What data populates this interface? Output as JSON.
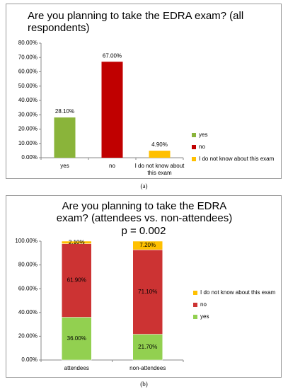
{
  "chart_data": [
    {
      "type": "bar",
      "title": "Are you planning to take the EDRA exam? (all respondents)",
      "caption": "(a)",
      "categories": [
        "yes",
        "no",
        "I do not know about this exam"
      ],
      "values": [
        28.1,
        67.0,
        4.9
      ],
      "value_labels": [
        "28.10%",
        "67.00%",
        "4.90%"
      ],
      "colors": [
        "#8ab43a",
        "#c00000",
        "#ffc000"
      ],
      "ylim": [
        0,
        80
      ],
      "yticks": [
        {
          "value": 0,
          "label": "0.00%"
        },
        {
          "value": 10,
          "label": "10.00%"
        },
        {
          "value": 20,
          "label": "20.00%"
        },
        {
          "value": 30,
          "label": "30.00%"
        },
        {
          "value": 40,
          "label": "40.00%"
        },
        {
          "value": 50,
          "label": "50.00%"
        },
        {
          "value": 60,
          "label": "60.00%"
        },
        {
          "value": 70,
          "label": "70.00%"
        },
        {
          "value": 80,
          "label": "80.00%"
        }
      ],
      "legend": "right"
    },
    {
      "type": "stacked-bar",
      "title": "Are you planning to take the EDRA exam? (attendees vs. non-attendees)",
      "subtitle": "p = 0.002",
      "caption": "(b)",
      "categories": [
        "attendees",
        "non-attendees"
      ],
      "series": [
        {
          "name": "yes",
          "color": "#92d050",
          "values": [
            36.0,
            21.7
          ],
          "value_labels": [
            "36.00%",
            "21.70%"
          ]
        },
        {
          "name": "no",
          "color": "#cc3333",
          "values": [
            61.9,
            71.1
          ],
          "value_labels": [
            "61.90%",
            "71.10%"
          ]
        },
        {
          "name": "I do not know about this exam",
          "color": "#ffc000",
          "values": [
            2.1,
            7.2
          ],
          "value_labels": [
            "2.10%",
            "7.20%"
          ]
        }
      ],
      "ylim": [
        0,
        100
      ],
      "yticks": [
        {
          "value": 0,
          "label": "0.00%"
        },
        {
          "value": 20,
          "label": "20.00%"
        },
        {
          "value": 40,
          "label": "40.00%"
        },
        {
          "value": 60,
          "label": "60.00%"
        },
        {
          "value": 80,
          "label": "80.00%"
        },
        {
          "value": 100,
          "label": "100.00%"
        }
      ],
      "legend": "right"
    }
  ]
}
